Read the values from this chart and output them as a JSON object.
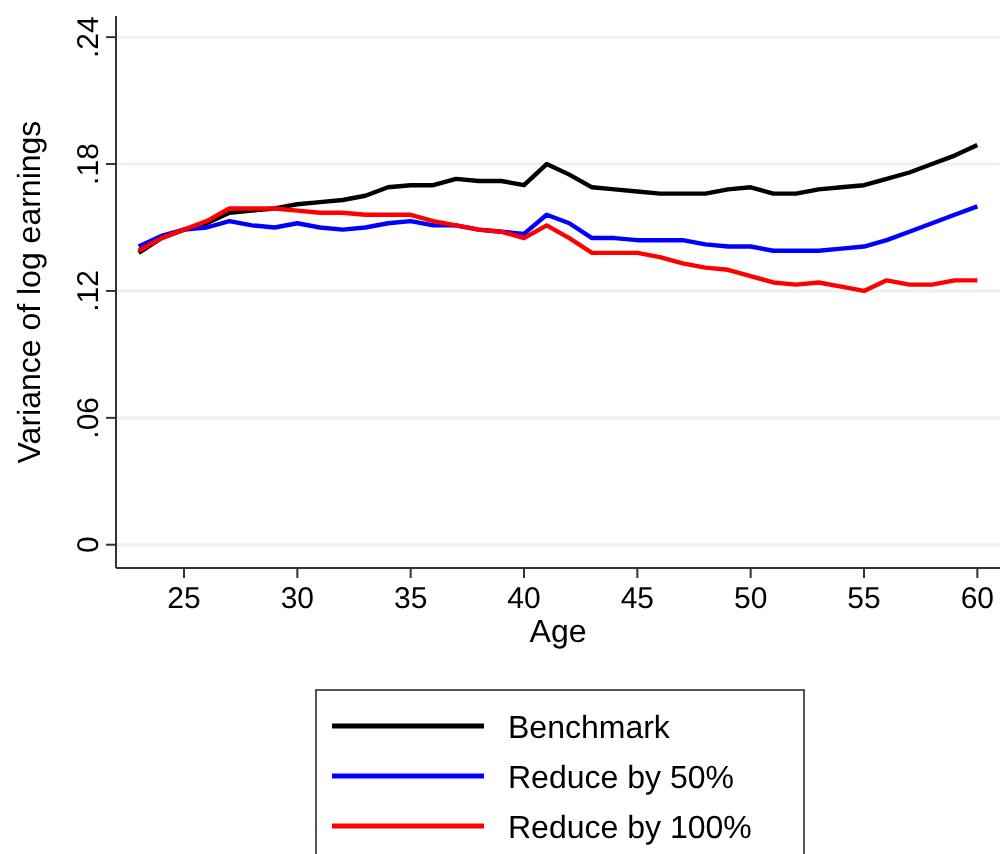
{
  "chart_data": {
    "type": "line",
    "xlabel": "Age",
    "ylabel": "Variance of log earnings",
    "x": [
      23,
      24,
      25,
      26,
      27,
      28,
      29,
      30,
      31,
      32,
      33,
      34,
      35,
      36,
      37,
      38,
      39,
      40,
      41,
      42,
      43,
      44,
      45,
      46,
      47,
      48,
      49,
      50,
      51,
      52,
      53,
      54,
      55,
      56,
      57,
      58,
      59,
      60
    ],
    "series": [
      {
        "name": "Benchmark",
        "color": "#000000",
        "values": [
          0.138,
          0.145,
          0.149,
          0.152,
          0.157,
          0.158,
          0.159,
          0.161,
          0.162,
          0.163,
          0.165,
          0.169,
          0.17,
          0.17,
          0.173,
          0.172,
          0.172,
          0.17,
          0.18,
          0.175,
          0.169,
          0.168,
          0.167,
          0.166,
          0.166,
          0.166,
          0.168,
          0.169,
          0.166,
          0.166,
          0.168,
          0.169,
          0.17,
          0.173,
          0.176,
          0.18,
          0.184,
          0.189
        ]
      },
      {
        "name": "Reduce by 50%",
        "color": "#0000ff",
        "values": [
          0.141,
          0.146,
          0.149,
          0.15,
          0.153,
          0.151,
          0.15,
          0.152,
          0.15,
          0.149,
          0.15,
          0.152,
          0.153,
          0.151,
          0.151,
          0.149,
          0.148,
          0.147,
          0.156,
          0.152,
          0.145,
          0.145,
          0.144,
          0.144,
          0.144,
          0.142,
          0.141,
          0.141,
          0.139,
          0.139,
          0.139,
          0.14,
          0.141,
          0.144,
          0.148,
          0.152,
          0.156,
          0.16
        ]
      },
      {
        "name": "Reduce by 100%",
        "color": "#ff0000",
        "values": [
          0.139,
          0.145,
          0.149,
          0.153,
          0.159,
          0.159,
          0.159,
          0.158,
          0.157,
          0.157,
          0.156,
          0.156,
          0.156,
          0.153,
          0.151,
          0.149,
          0.148,
          0.145,
          0.151,
          0.145,
          0.138,
          0.138,
          0.138,
          0.136,
          0.133,
          0.131,
          0.13,
          0.127,
          0.124,
          0.123,
          0.124,
          0.122,
          0.12,
          0.125,
          0.123,
          0.123,
          0.125,
          0.125
        ]
      }
    ],
    "xlim": [
      22,
      61
    ],
    "xticks": [
      25,
      30,
      35,
      40,
      45,
      50,
      55,
      60
    ],
    "ylim": [
      -0.011,
      0.25
    ],
    "yticks": [
      0,
      {
        "value": 0.06,
        "label": ".06"
      },
      {
        "value": 0.12,
        "label": ".12"
      },
      {
        "value": 0.18,
        "label": ".18"
      },
      {
        "value": 0.24,
        "label": ".24"
      }
    ],
    "grid": "y",
    "legend": "bottom",
    "line_style": "solid",
    "marker": "none"
  }
}
